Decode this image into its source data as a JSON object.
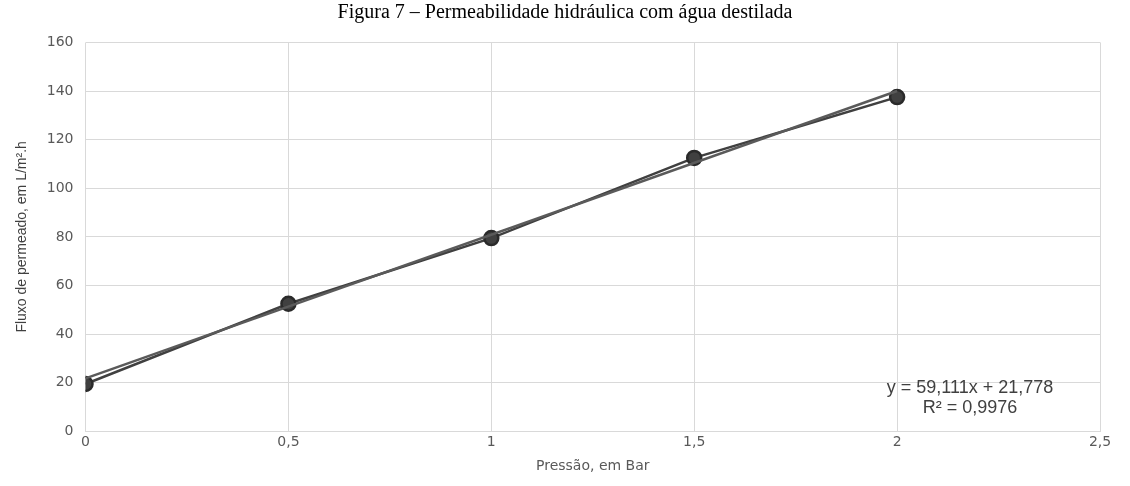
{
  "chart_data": {
    "type": "line",
    "title": "Figura 7 – Permeabilidade hidráulica com água destilada",
    "xlabel": "Pressão, em Bar",
    "ylabel": "Fluxo de permeado, em L/m².h",
    "x": [
      0,
      0.5,
      1,
      1.5,
      2
    ],
    "series": [
      {
        "color": "#404040",
        "values": [
          19.5,
          52.5,
          79.5,
          112.5,
          137.5
        ],
        "marker": "circle"
      },
      {
        "color": "#5a5a5a",
        "x": [
          0,
          2
        ],
        "values": [
          21.8,
          140
        ],
        "marker": "none"
      }
    ],
    "annotations": [
      "y = 59,111x + 21,778",
      "R² = 0,9976"
    ],
    "xlim": [
      0,
      2.5
    ],
    "xticks": [
      0,
      {
        "value": 0.5,
        "label": "0,5"
      },
      1,
      {
        "value": 1.5,
        "label": "1,5"
      },
      2,
      {
        "value": 2.5,
        "label": "2,5"
      }
    ],
    "ylim": [
      0,
      160
    ],
    "yticks": [
      0,
      20,
      40,
      60,
      80,
      100,
      120,
      140,
      160
    ],
    "grid": true,
    "legend": false
  }
}
